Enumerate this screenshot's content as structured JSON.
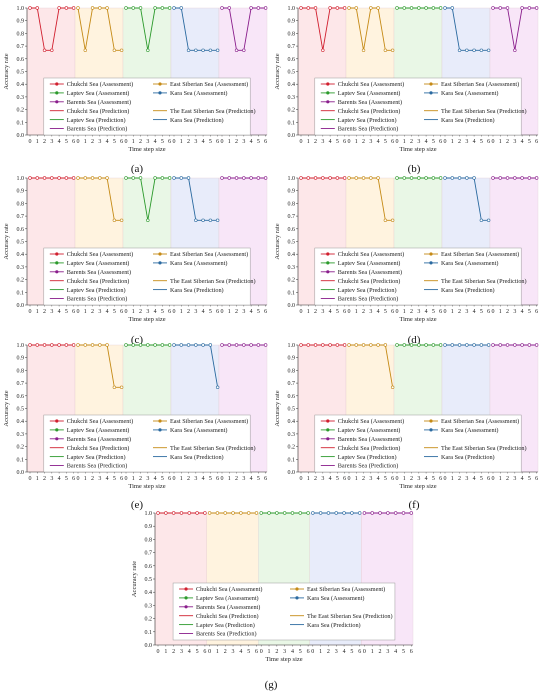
{
  "figure": {
    "panels": [
      {
        "id": "a",
        "label": "(a)"
      },
      {
        "id": "b",
        "label": "(b)"
      },
      {
        "id": "c",
        "label": "(c)"
      },
      {
        "id": "d",
        "label": "(d)"
      },
      {
        "id": "e",
        "label": "(e)"
      },
      {
        "id": "f",
        "label": "(f)"
      },
      {
        "id": "g",
        "label": "(g)"
      }
    ]
  },
  "colors": {
    "Chukchi": "#d1202f",
    "EastSiberian": "#c58a16",
    "Laptev": "#2c9a2c",
    "Kara": "#2b6aa0",
    "Barents": "#8a1e8c",
    "bg": [
      "#fde7e9",
      "#fff3df",
      "#e9f7e6",
      "#e8ecfa",
      "#f8e6f8"
    ]
  },
  "legend": [
    {
      "label": "Chukchi Sea (Assessment)",
      "sea": "Chukchi",
      "kind": "assessment"
    },
    {
      "label": "East Siberian Sea (Assessment)",
      "sea": "EastSiberian",
      "kind": "assessment"
    },
    {
      "label": "Laptev Sea (Assessment)",
      "sea": "Laptev",
      "kind": "assessment"
    },
    {
      "label": "Kara Sea (Assessment)",
      "sea": "Kara",
      "kind": "assessment"
    },
    {
      "label": "Barents Sea (Assessment)",
      "sea": "Barents",
      "kind": "assessment"
    },
    {
      "label": "Chukchi Sea (Prediction)",
      "sea": "Chukchi",
      "kind": "prediction"
    },
    {
      "label": "The East Siberian Sea (Prediction)",
      "sea": "EastSiberian",
      "kind": "prediction"
    },
    {
      "label": "Laptev Sea (Prediction)",
      "sea": "Laptev",
      "kind": "prediction"
    },
    {
      "label": "Kara Sea (Prediction)",
      "sea": "Kara",
      "kind": "prediction"
    },
    {
      "label": "Barents Sea (Prediction)",
      "sea": "Barents",
      "kind": "prediction"
    }
  ],
  "chart_data": [
    {
      "type": "line",
      "panel": "a",
      "xlabel": "Time step size",
      "ylabel": "Accuracy rate",
      "x": [
        0,
        1,
        2,
        3,
        4,
        5,
        6
      ],
      "ylim": [
        0,
        1
      ],
      "yticks": [
        0,
        0.1,
        0.2,
        0.3,
        0.4,
        0.5,
        0.6,
        0.7,
        0.8,
        0.9,
        1.0
      ],
      "legend_position": "lower-center",
      "series": [
        {
          "name": "Chukchi Sea (Prediction)",
          "values": [
            1,
            1,
            0.667,
            0.667,
            1,
            1,
            1
          ]
        },
        {
          "name": "The East Siberian Sea (Prediction)",
          "values": [
            1,
            0.667,
            1,
            1,
            1,
            0.667,
            0.667
          ]
        },
        {
          "name": "Laptev Sea (Prediction)",
          "values": [
            1,
            1,
            1,
            0.667,
            1,
            1,
            1
          ]
        },
        {
          "name": "Kara Sea (Prediction)",
          "values": [
            1,
            1,
            0.667,
            0.667,
            0.667,
            0.667,
            0.667
          ]
        },
        {
          "name": "Barents Sea (Prediction)",
          "values": [
            1,
            1,
            0.667,
            0.667,
            1,
            1,
            1
          ]
        }
      ]
    },
    {
      "type": "line",
      "panel": "b",
      "xlabel": "Time step size",
      "ylabel": "Accuracy rate",
      "x": [
        0,
        1,
        2,
        3,
        4,
        5,
        6
      ],
      "ylim": [
        0,
        1
      ],
      "yticks": [
        0,
        0.1,
        0.2,
        0.3,
        0.4,
        0.5,
        0.6,
        0.7,
        0.8,
        0.9,
        1.0
      ],
      "legend_position": "lower-center",
      "series": [
        {
          "name": "Chukchi Sea (Prediction)",
          "values": [
            1,
            1,
            1,
            0.667,
            1,
            1,
            1
          ]
        },
        {
          "name": "The East Siberian Sea (Prediction)",
          "values": [
            1,
            1,
            0.667,
            1,
            1,
            0.667,
            0.667
          ]
        },
        {
          "name": "Laptev Sea (Prediction)",
          "values": [
            1,
            1,
            1,
            1,
            1,
            1,
            1
          ]
        },
        {
          "name": "Kara Sea (Prediction)",
          "values": [
            1,
            1,
            0.667,
            0.667,
            0.667,
            0.667,
            0.667
          ]
        },
        {
          "name": "Barents Sea (Prediction)",
          "values": [
            1,
            1,
            1,
            0.667,
            1,
            1,
            1
          ]
        }
      ]
    },
    {
      "type": "line",
      "panel": "c",
      "xlabel": "Time step size",
      "ylabel": "Accuracy rate",
      "x": [
        0,
        1,
        2,
        3,
        4,
        5,
        6
      ],
      "ylim": [
        0,
        1
      ],
      "yticks": [
        0,
        0.1,
        0.2,
        0.3,
        0.4,
        0.5,
        0.6,
        0.7,
        0.8,
        0.9,
        1.0
      ],
      "legend_position": "lower-center",
      "series": [
        {
          "name": "Chukchi Sea (Prediction)",
          "values": [
            1,
            1,
            1,
            1,
            1,
            1,
            1
          ]
        },
        {
          "name": "The East Siberian Sea (Prediction)",
          "values": [
            1,
            1,
            1,
            1,
            1,
            0.667,
            0.667
          ]
        },
        {
          "name": "Laptev Sea (Prediction)",
          "values": [
            1,
            1,
            1,
            0.667,
            1,
            1,
            1
          ]
        },
        {
          "name": "Kara Sea (Prediction)",
          "values": [
            1,
            1,
            1,
            0.667,
            0.667,
            0.667,
            0.667
          ]
        },
        {
          "name": "Barents Sea (Prediction)",
          "values": [
            1,
            1,
            1,
            1,
            1,
            1,
            1
          ]
        }
      ]
    },
    {
      "type": "line",
      "panel": "d",
      "xlabel": "Time step size",
      "ylabel": "Accuracy rate",
      "x": [
        0,
        1,
        2,
        3,
        4,
        5,
        6
      ],
      "ylim": [
        0,
        1
      ],
      "yticks": [
        0,
        0.1,
        0.2,
        0.3,
        0.4,
        0.5,
        0.6,
        0.7,
        0.8,
        0.9,
        1.0
      ],
      "legend_position": "lower-center",
      "series": [
        {
          "name": "Chukchi Sea (Prediction)",
          "values": [
            1,
            1,
            1,
            1,
            1,
            1,
            1
          ]
        },
        {
          "name": "The East Siberian Sea (Prediction)",
          "values": [
            1,
            1,
            1,
            1,
            1,
            0.667,
            0.667
          ]
        },
        {
          "name": "Laptev Sea (Prediction)",
          "values": [
            1,
            1,
            1,
            1,
            1,
            1,
            1
          ]
        },
        {
          "name": "Kara Sea (Prediction)",
          "values": [
            1,
            1,
            1,
            1,
            1,
            0.667,
            0.667
          ]
        },
        {
          "name": "Barents Sea (Prediction)",
          "values": [
            1,
            1,
            1,
            1,
            1,
            1,
            1
          ]
        }
      ]
    },
    {
      "type": "line",
      "panel": "e",
      "xlabel": "Time step size",
      "ylabel": "Accuracy rate",
      "x": [
        0,
        1,
        2,
        3,
        4,
        5,
        6
      ],
      "ylim": [
        0,
        1
      ],
      "yticks": [
        0,
        0.1,
        0.2,
        0.3,
        0.4,
        0.5,
        0.6,
        0.7,
        0.8,
        0.9,
        1.0
      ],
      "legend_position": "lower-center",
      "series": [
        {
          "name": "Chukchi Sea (Prediction)",
          "values": [
            1,
            1,
            1,
            1,
            1,
            1,
            1
          ]
        },
        {
          "name": "The East Siberian Sea (Prediction)",
          "values": [
            1,
            1,
            1,
            1,
            1,
            0.667,
            0.667
          ]
        },
        {
          "name": "Laptev Sea (Prediction)",
          "values": [
            1,
            1,
            1,
            1,
            1,
            1,
            1
          ]
        },
        {
          "name": "Kara Sea (Prediction)",
          "values": [
            1,
            1,
            1,
            1,
            1,
            1,
            0.667
          ]
        },
        {
          "name": "Barents Sea (Prediction)",
          "values": [
            1,
            1,
            1,
            1,
            1,
            1,
            1
          ]
        }
      ]
    },
    {
      "type": "line",
      "panel": "f",
      "xlabel": "Time step size",
      "ylabel": "Accuracy rate",
      "x": [
        0,
        1,
        2,
        3,
        4,
        5,
        6
      ],
      "ylim": [
        0,
        1
      ],
      "yticks": [
        0,
        0.1,
        0.2,
        0.3,
        0.4,
        0.5,
        0.6,
        0.7,
        0.8,
        0.9,
        1.0
      ],
      "legend_position": "lower-center",
      "series": [
        {
          "name": "Chukchi Sea (Prediction)",
          "values": [
            1,
            1,
            1,
            1,
            1,
            1,
            1
          ]
        },
        {
          "name": "The East Siberian Sea (Prediction)",
          "values": [
            1,
            1,
            1,
            1,
            1,
            1,
            0.667
          ]
        },
        {
          "name": "Laptev Sea (Prediction)",
          "values": [
            1,
            1,
            1,
            1,
            1,
            1,
            1
          ]
        },
        {
          "name": "Kara Sea (Prediction)",
          "values": [
            1,
            1,
            1,
            1,
            1,
            1,
            1
          ]
        },
        {
          "name": "Barents Sea (Prediction)",
          "values": [
            1,
            1,
            1,
            1,
            1,
            1,
            1
          ]
        }
      ]
    },
    {
      "type": "line",
      "panel": "g",
      "xlabel": "Time step size",
      "ylabel": "Accuracy rate",
      "x": [
        0,
        1,
        2,
        3,
        4,
        5,
        6
      ],
      "ylim": [
        0,
        1
      ],
      "yticks": [
        0,
        0.1,
        0.2,
        0.3,
        0.4,
        0.5,
        0.6,
        0.7,
        0.8,
        0.9,
        1.0
      ],
      "legend_position": "lower-center",
      "series": [
        {
          "name": "Chukchi Sea (Prediction)",
          "values": [
            1,
            1,
            1,
            1,
            1,
            1,
            1
          ]
        },
        {
          "name": "The East Siberian Sea (Prediction)",
          "values": [
            1,
            1,
            1,
            1,
            1,
            1,
            1
          ]
        },
        {
          "name": "Laptev Sea (Prediction)",
          "values": [
            1,
            1,
            1,
            1,
            1,
            1,
            1
          ]
        },
        {
          "name": "Kara Sea (Prediction)",
          "values": [
            1,
            1,
            1,
            1,
            1,
            1,
            1
          ]
        },
        {
          "name": "Barents Sea (Prediction)",
          "values": [
            1,
            1,
            1,
            1,
            1,
            1,
            1
          ]
        }
      ]
    }
  ]
}
